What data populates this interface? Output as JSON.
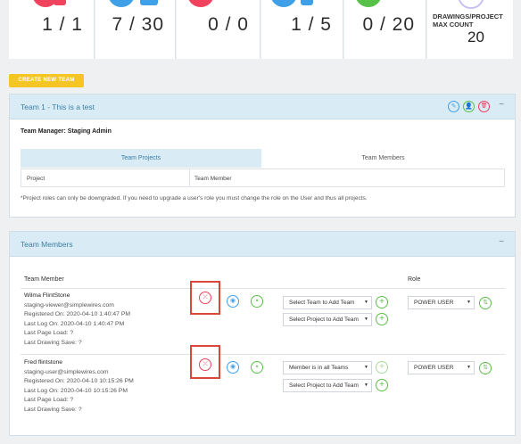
{
  "stats": [
    {
      "value": "1 / 1",
      "color": "#f0415d"
    },
    {
      "value": "7 / 30",
      "color": "#3fa0e8"
    },
    {
      "value": "0 / 0",
      "color": "#f0415d"
    },
    {
      "value": "1 / 5",
      "color": "#3fa0e8"
    },
    {
      "value": "0 / 20",
      "color": "#58c149"
    },
    {
      "label": "DRAWINGS/PROJECT MAX COUNT",
      "value": "20",
      "color": "#9b8ad8"
    }
  ],
  "create_button": "CREATE NEW TEAM",
  "team_panel": {
    "title": "Team 1 - This is a test",
    "collapse": "−",
    "manager": "Team Manager: Staging Admin",
    "tabs": [
      "Team Projects",
      "Team Members"
    ],
    "table_headers": [
      "Project",
      "Team Member"
    ],
    "note": "*Project roles can only be downgraded. If you need to upgrade a user's role you must change the role on the User and thus all projects.",
    "icons": {
      "edit": "✎",
      "user": "👤",
      "delete": "🗑"
    }
  },
  "members_panel": {
    "title": "Team Members",
    "collapse": "−",
    "headers": {
      "member": "Team Member",
      "role": "Role"
    },
    "members": [
      {
        "name": "Wilma FlintStone",
        "email": "staging-viewer@simplewires.com",
        "registered": "Registered On: 2020-04-10 1:40:47 PM",
        "last_log": "Last Log On: 2020-04-10 1:40:47 PM",
        "last_page": "Last Page Load: ?",
        "last_drawing": "Last Drawing Save: ?",
        "team_select": "Select Team to Add Team",
        "project_select": "Select Project to Add Team",
        "role": "POWER USER"
      },
      {
        "name": "Fred flintstone",
        "email": "staging-user@simplewires.com",
        "registered": "Registered On: 2020-04-10 10:15:26 PM",
        "last_log": "Last Log On: 2020-04-10 10:15:26 PM",
        "last_page": "Last Page Load: ?",
        "last_drawing": "Last Drawing Save: ?",
        "team_select": "Member is in all Teams",
        "project_select": "Select Project to Add Team",
        "role": "POWER USER"
      }
    ],
    "glyphs": {
      "plus": "+",
      "caret": "▼",
      "refresh": "⇅"
    }
  }
}
